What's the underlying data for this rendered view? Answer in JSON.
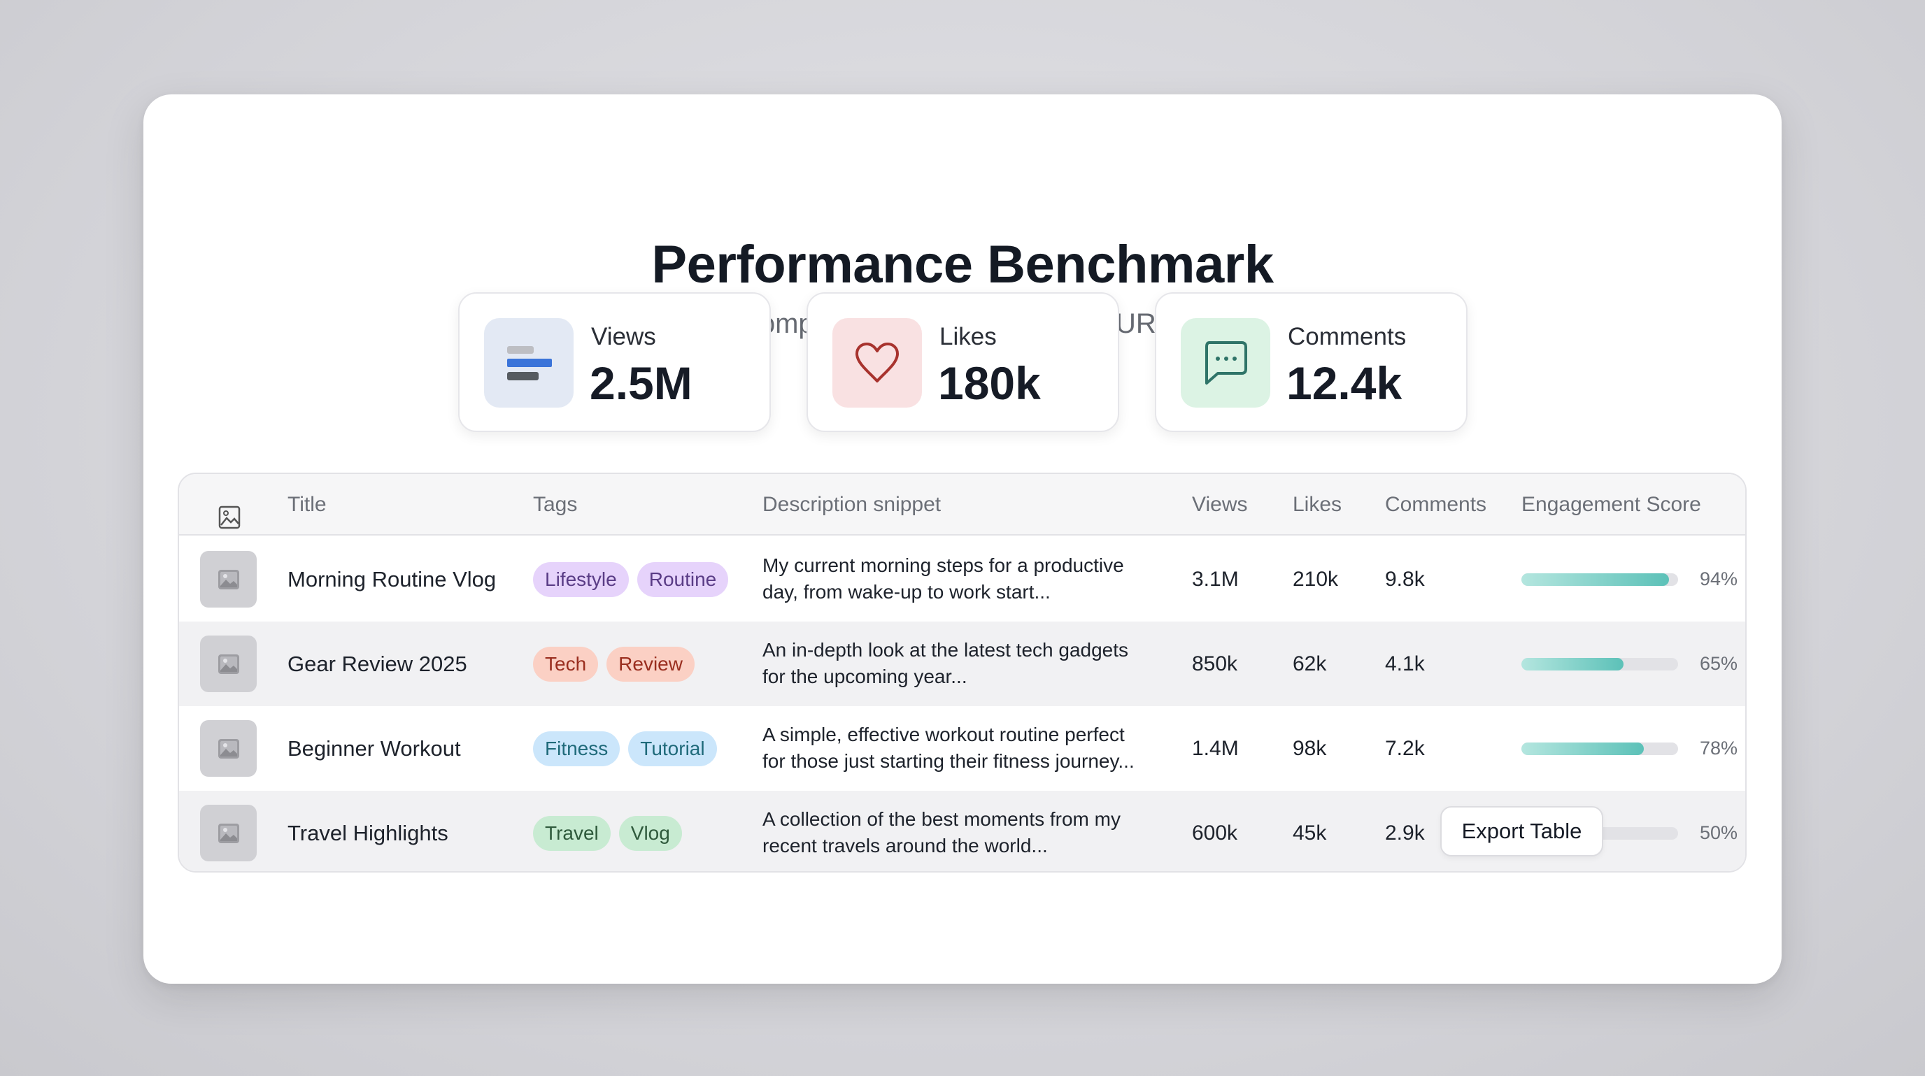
{
  "header": {
    "title": "Performance Benchmark",
    "subtitle": "Compare engagement across URLs"
  },
  "stats": [
    {
      "label": "Views",
      "value": "2.5M",
      "icon": "bar-chart-icon",
      "icon_bg": "#e3e9f4"
    },
    {
      "label": "Likes",
      "value": "180k",
      "icon": "heart-icon",
      "icon_bg": "#f9e1e2"
    },
    {
      "label": "Comments",
      "value": "12.4k",
      "icon": "chat-bubble-icon",
      "icon_bg": "#dcf3e4"
    }
  ],
  "table": {
    "columns": [
      "Title",
      "Tags",
      "Description snippet",
      "Views",
      "Likes",
      "Comments",
      "Engagement Score"
    ],
    "rows": [
      {
        "title": "Morning Routine Vlog",
        "tags": [
          {
            "label": "Lifestyle",
            "bg": "#e6d3fb",
            "fg": "#5a3c86"
          },
          {
            "label": "Routine",
            "bg": "#e6d3fb",
            "fg": "#5a3c86"
          }
        ],
        "desc1": "My current morning steps for a productive",
        "desc2": "day, from wake-up to work start...",
        "views": "3.1M",
        "likes": "210k",
        "comments": "9.8k",
        "score": 94,
        "score_label": "94%"
      },
      {
        "title": "Gear Review 2025",
        "tags": [
          {
            "label": "Tech",
            "bg": "#fbd0c4",
            "fg": "#9a2e1f"
          },
          {
            "label": "Review",
            "bg": "#fbd0c4",
            "fg": "#9a2e1f"
          }
        ],
        "desc1": "An in-depth look at the latest tech gadgets",
        "desc2": "for the upcoming year...",
        "views": "850k",
        "likes": "62k",
        "comments": "4.1k",
        "score": 65,
        "score_label": "65%"
      },
      {
        "title": "Beginner Workout",
        "tags": [
          {
            "label": "Fitness",
            "bg": "#cbe6fb",
            "fg": "#1f6a7a"
          },
          {
            "label": "Tutorial",
            "bg": "#cbe6fb",
            "fg": "#1f6a7a"
          }
        ],
        "desc1": "A simple, effective workout routine perfect",
        "desc2": "for those just starting their fitness journey...",
        "views": "1.4M",
        "likes": "98k",
        "comments": "7.2k",
        "score": 78,
        "score_label": "78%"
      },
      {
        "title": "Travel Highlights",
        "tags": [
          {
            "label": "Travel",
            "bg": "#c8ebd2",
            "fg": "#2f5a3c"
          },
          {
            "label": "Vlog",
            "bg": "#c8ebd2",
            "fg": "#2f5a3c"
          }
        ],
        "desc1": "A collection of the best moments from my",
        "desc2": "recent travels around the world...",
        "views": "600k",
        "likes": "45k",
        "comments": "2.9k",
        "score": 50,
        "score_label": "50%"
      }
    ]
  },
  "actions": {
    "export_label": "Export Table"
  },
  "colors": {
    "accent": "#5cc1b8",
    "views_icon": "#3b74d9",
    "likes_icon": "#a8332e",
    "comments_icon": "#2f7468"
  }
}
